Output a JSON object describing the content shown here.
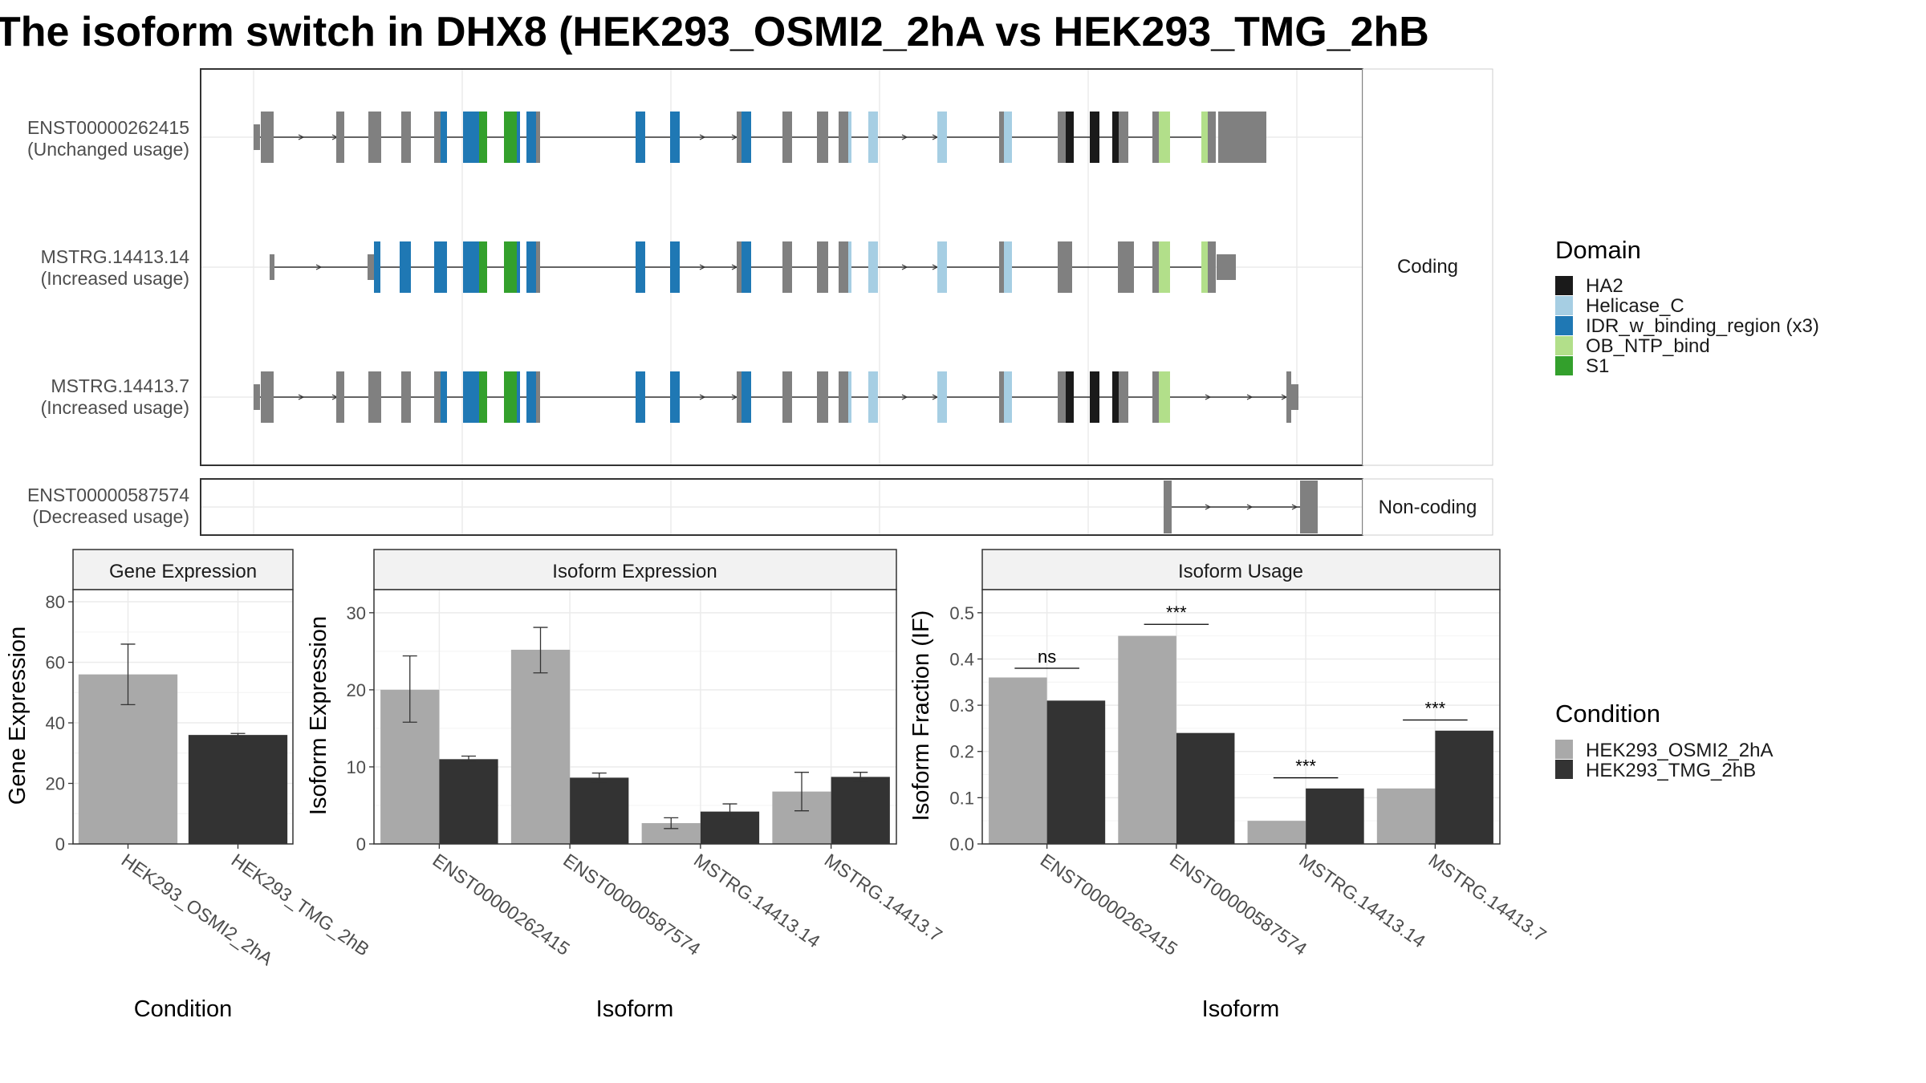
{
  "title": "The isoform switch in DHX8 (HEK293_OSMI2_2hA vs HEK293_TMG_2hB",
  "structure": {
    "facets": [
      "Coding",
      "Non-coding"
    ],
    "isoforms": [
      {
        "name": "ENST00000262415",
        "usage": "(Unchanged usage)",
        "facet": "Coding"
      },
      {
        "name": "MSTRG.14413.14",
        "usage": "(Increased usage)",
        "facet": "Coding"
      },
      {
        "name": "MSTRG.14413.7",
        "usage": "(Increased usage)",
        "facet": "Coding"
      },
      {
        "name": "ENST00000587574",
        "usage": "(Decreased usage)",
        "facet": "Non-coding"
      }
    ]
  },
  "domain_legend": {
    "title": "Domain",
    "items": [
      {
        "label": "HA2",
        "color": "#1a1a1a"
      },
      {
        "label": "Helicase_C",
        "color": "#a6cee3"
      },
      {
        "label": "IDR_w_binding_region (x3)",
        "color": "#1f78b4"
      },
      {
        "label": "OB_NTP_bind",
        "color": "#b2df8a"
      },
      {
        "label": "S1",
        "color": "#33a02c"
      }
    ]
  },
  "condition_legend": {
    "title": "Condition",
    "items": [
      {
        "label": "HEK293_OSMI2_2hA",
        "color": "#a9a9a9"
      },
      {
        "label": "HEK293_TMG_2hB",
        "color": "#333333"
      }
    ]
  },
  "chart_data": [
    {
      "type": "bar",
      "title": "Gene Expression",
      "xlabel": "Condition",
      "ylabel": "Gene Expression",
      "ylim": [
        0,
        84
      ],
      "yticks": [
        0,
        20,
        40,
        60,
        80
      ],
      "categories": [
        "HEK293_OSMI2_2hA",
        "HEK293_TMG_2hB"
      ],
      "values": [
        56,
        36
      ],
      "errors": [
        [
          46,
          66
        ],
        [
          35.5,
          36.5
        ]
      ],
      "colors": [
        "#a9a9a9",
        "#333333"
      ]
    },
    {
      "type": "bar",
      "title": "Isoform Expression",
      "xlabel": "Isoform",
      "ylabel": "Isoform Expression",
      "ylim": [
        0,
        33
      ],
      "yticks": [
        0,
        10,
        20,
        30
      ],
      "categories": [
        "ENST00000262415",
        "ENST00000587574",
        "MSTRG.14413.14",
        "MSTRG.14413.7"
      ],
      "series": [
        {
          "name": "HEK293_OSMI2_2hA",
          "color": "#a9a9a9",
          "values": [
            20.0,
            25.2,
            2.7,
            6.8
          ],
          "errors": [
            [
              15.8,
              24.4
            ],
            [
              22.2,
              28.1
            ],
            [
              2.0,
              3.4
            ],
            [
              4.3,
              9.3
            ]
          ]
        },
        {
          "name": "HEK293_TMG_2hB",
          "color": "#333333",
          "values": [
            11.0,
            8.6,
            4.2,
            8.7
          ],
          "errors": [
            [
              10.7,
              11.4
            ],
            [
              8.0,
              9.2
            ],
            [
              3.2,
              5.2
            ],
            [
              8.1,
              9.3
            ]
          ]
        }
      ]
    },
    {
      "type": "bar",
      "title": "Isoform Usage",
      "xlabel": "Isoform",
      "ylabel": "Isoform Fraction (IF)",
      "ylim": [
        0,
        0.55
      ],
      "yticks": [
        0.0,
        0.1,
        0.2,
        0.3,
        0.4,
        0.5
      ],
      "categories": [
        "ENST00000262415",
        "ENST00000587574",
        "MSTRG.14413.14",
        "MSTRG.14413.7"
      ],
      "series": [
        {
          "name": "HEK293_OSMI2_2hA",
          "color": "#a9a9a9",
          "values": [
            0.36,
            0.45,
            0.05,
            0.12
          ]
        },
        {
          "name": "HEK293_TMG_2hB",
          "color": "#333333",
          "values": [
            0.31,
            0.24,
            0.12,
            0.245
          ]
        }
      ],
      "significance": [
        {
          "category": "ENST00000262415",
          "label": "ns",
          "y": 0.38
        },
        {
          "category": "ENST00000587574",
          "label": "***",
          "y": 0.475
        },
        {
          "category": "MSTRG.14413.14",
          "label": "***",
          "y": 0.143
        },
        {
          "category": "MSTRG.14413.7",
          "label": "***",
          "y": 0.268
        }
      ]
    }
  ]
}
